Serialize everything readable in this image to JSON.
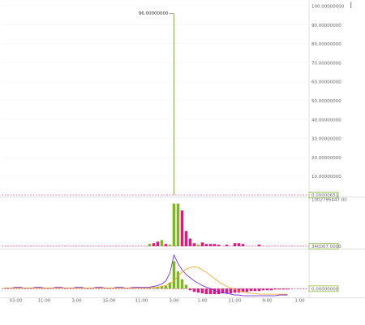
{
  "chart_data": [
    {
      "type": "bar",
      "up_color": "#7fb522",
      "down_color": "#e0197d",
      "grid": true,
      "ylim": [
        0,
        100
      ],
      "yticks": [
        {
          "value": 10,
          "label": "10.00000000"
        },
        {
          "value": 20,
          "label": "20.00000000"
        },
        {
          "value": 30,
          "label": "30.00000000"
        },
        {
          "value": 40,
          "label": "40.00000000"
        },
        {
          "value": 50,
          "label": "50.00000000"
        },
        {
          "value": 60,
          "label": "60.00000000"
        },
        {
          "value": 70,
          "label": "70.00000000"
        },
        {
          "value": 80,
          "label": "80.00000000"
        },
        {
          "value": 90,
          "label": "90.00000000"
        },
        {
          "value": 100,
          "label": "100.00000000"
        }
      ],
      "badge": {
        "value": 6.51e-06,
        "label": "0.00000651"
      },
      "annotation": {
        "value": 96,
        "label": "96.00000000"
      },
      "values": [
        0,
        0,
        0,
        0,
        0,
        0,
        0,
        0,
        0,
        0,
        0,
        0,
        0,
        0,
        0,
        0,
        0,
        0,
        0,
        0,
        0,
        0,
        0,
        0,
        0,
        0,
        0,
        0,
        0,
        0,
        0,
        0,
        0,
        0,
        0,
        0,
        0,
        0,
        0,
        0,
        0,
        0,
        96,
        0,
        0,
        0,
        0,
        0,
        0,
        0,
        0,
        0,
        0,
        0,
        0,
        0,
        0,
        0,
        0,
        0,
        0,
        0,
        0,
        0,
        0,
        0,
        0,
        0,
        0,
        0,
        0,
        0,
        0,
        0,
        0,
        0
      ]
    },
    {
      "type": "bar",
      "grid": false,
      "ylim": [
        0,
        1002795447
      ],
      "yticks": [
        {
          "value": 1002795447,
          "label": "1002795447.00"
        }
      ],
      "badge": {
        "value": 340007,
        "label": "340007.0000"
      },
      "values": [
        0,
        0,
        0,
        0,
        0,
        0,
        0,
        0,
        0,
        0,
        0,
        0,
        0,
        0,
        0,
        0,
        0,
        0,
        0,
        0,
        0,
        0,
        0,
        0,
        0,
        0,
        0,
        0,
        0,
        0,
        0,
        0,
        0,
        0,
        0,
        0,
        48000000,
        65000000,
        97000000,
        129000000,
        48000000,
        32000000,
        906000000,
        906000000,
        760000000,
        323000000,
        162000000,
        65000000,
        32000000,
        81000000,
        48000000,
        48000000,
        48000000,
        32000000,
        0,
        32000000,
        0,
        65000000,
        65000000,
        48000000,
        0,
        0,
        0,
        32000000,
        0,
        0,
        0,
        0,
        0,
        0,
        0,
        0,
        0,
        0,
        0,
        0
      ],
      "colors": [
        "#e0197d",
        "#e0197d",
        "#e0197d",
        "#e0197d",
        "#e0197d",
        "#e0197d",
        "#e0197d",
        "#e0197d",
        "#e0197d",
        "#e0197d",
        "#e0197d",
        "#e0197d",
        "#e0197d",
        "#e0197d",
        "#e0197d",
        "#e0197d",
        "#e0197d",
        "#e0197d",
        "#e0197d",
        "#e0197d",
        "#e0197d",
        "#e0197d",
        "#e0197d",
        "#e0197d",
        "#e0197d",
        "#e0197d",
        "#e0197d",
        "#e0197d",
        "#e0197d",
        "#e0197d",
        "#e0197d",
        "#e0197d",
        "#e0197d",
        "#e0197d",
        "#e0197d",
        "#e0197d",
        "#7fb522",
        "#e0197d",
        "#e0197d",
        "#7fb522",
        "#e0197d",
        "#7fb522",
        "#7fb522",
        "#7fb522",
        "#e0197d",
        "#e0197d",
        "#e0197d",
        "#e0197d",
        "#7fb522",
        "#e0197d",
        "#e0197d",
        "#e0197d",
        "#e0197d",
        "#e0197d",
        "#e0197d",
        "#e0197d",
        "#e0197d",
        "#e0197d",
        "#e0197d",
        "#e0197d",
        "#e0197d",
        "#e0197d",
        "#e0197d",
        "#e0197d",
        "#e0197d",
        "#e0197d",
        "#e0197d",
        "#e0197d",
        "#e0197d",
        "#e0197d",
        "#e0197d",
        "#e0197d",
        "#e0197d",
        "#e0197d",
        "#e0197d",
        "#e0197d"
      ]
    },
    {
      "type": "macd",
      "up_color": "#7fb522",
      "down_color": "#e0197d",
      "ylim": [
        -10,
        48
      ],
      "badge": {
        "value": 0,
        "label": "0.00000000"
      },
      "categories": [
        null,
        null,
        null,
        "03:00",
        null,
        null,
        null,
        null,
        null,
        null,
        "11:00",
        null,
        null,
        null,
        null,
        null,
        null,
        null,
        "3:00",
        null,
        null,
        null,
        null,
        null,
        null,
        null,
        "15:00",
        null,
        null,
        null,
        null,
        null,
        null,
        null,
        "11:00",
        null,
        null,
        null,
        null,
        null,
        null,
        null,
        "3:00",
        null,
        null,
        null,
        null,
        null,
        null,
        "1:00",
        null,
        null,
        null,
        null,
        null,
        null,
        null,
        "11:00",
        null,
        null,
        null,
        null,
        null,
        null,
        null,
        "9:00",
        null,
        null,
        null,
        null,
        null,
        null,
        null,
        "1:00",
        null,
        null
      ],
      "values": [
        0,
        0,
        0,
        0,
        0,
        0,
        0,
        0,
        0,
        0,
        0,
        0,
        0,
        0,
        0,
        0,
        0,
        0,
        0,
        0,
        0,
        0,
        0,
        0,
        0,
        0,
        0,
        0,
        0,
        0,
        0,
        0,
        0,
        0,
        0,
        0,
        1,
        1,
        2,
        3,
        4,
        8,
        35,
        22,
        12,
        5,
        -2,
        -4,
        -5,
        -6,
        -7,
        -7,
        -7,
        -7,
        -6,
        -6,
        -6,
        -5,
        -5,
        -4,
        -4,
        -3,
        -3,
        -3,
        -2,
        -2,
        -2,
        -1,
        -1,
        -1,
        -1,
        0,
        0,
        0,
        0,
        0
      ],
      "series": [
        {
          "color": "#6a1fd1",
          "values": [
            1,
            1,
            1,
            2,
            2,
            1,
            1,
            1,
            2,
            2,
            1,
            1,
            1,
            2,
            2,
            1,
            1,
            1,
            2,
            2,
            1,
            1,
            1,
            2,
            2,
            1,
            1,
            1,
            2,
            2,
            1,
            1,
            2,
            2,
            2,
            2,
            2,
            3,
            4,
            6,
            10,
            20,
            43,
            32,
            24,
            18,
            14,
            10,
            7,
            4,
            2,
            0,
            -2,
            -4,
            -5,
            -6,
            -7,
            -8,
            -8,
            -9,
            -9,
            -9,
            -9,
            -9,
            -9,
            -9,
            -9,
            -9,
            -8,
            -8,
            -8,
            null,
            null,
            null,
            null,
            null
          ]
        },
        {
          "color": "#f0a020",
          "values": [
            1,
            1,
            1,
            1,
            1,
            1,
            1,
            1,
            1,
            1,
            1,
            1,
            1,
            1,
            1,
            1,
            1,
            1,
            1,
            1,
            1,
            1,
            1,
            1,
            1,
            1,
            1,
            1,
            1,
            1,
            1,
            1,
            1,
            1,
            1,
            1,
            1,
            2,
            2,
            3,
            4,
            6,
            10,
            16,
            21,
            25,
            27,
            28,
            27,
            24,
            21,
            17,
            13,
            9,
            6,
            3,
            1,
            -1,
            -3,
            -4,
            -5,
            -6,
            -6,
            -7,
            -7,
            -7,
            -7,
            -7,
            -7,
            -7,
            -7,
            null,
            null,
            null,
            null,
            null
          ]
        }
      ]
    }
  ]
}
